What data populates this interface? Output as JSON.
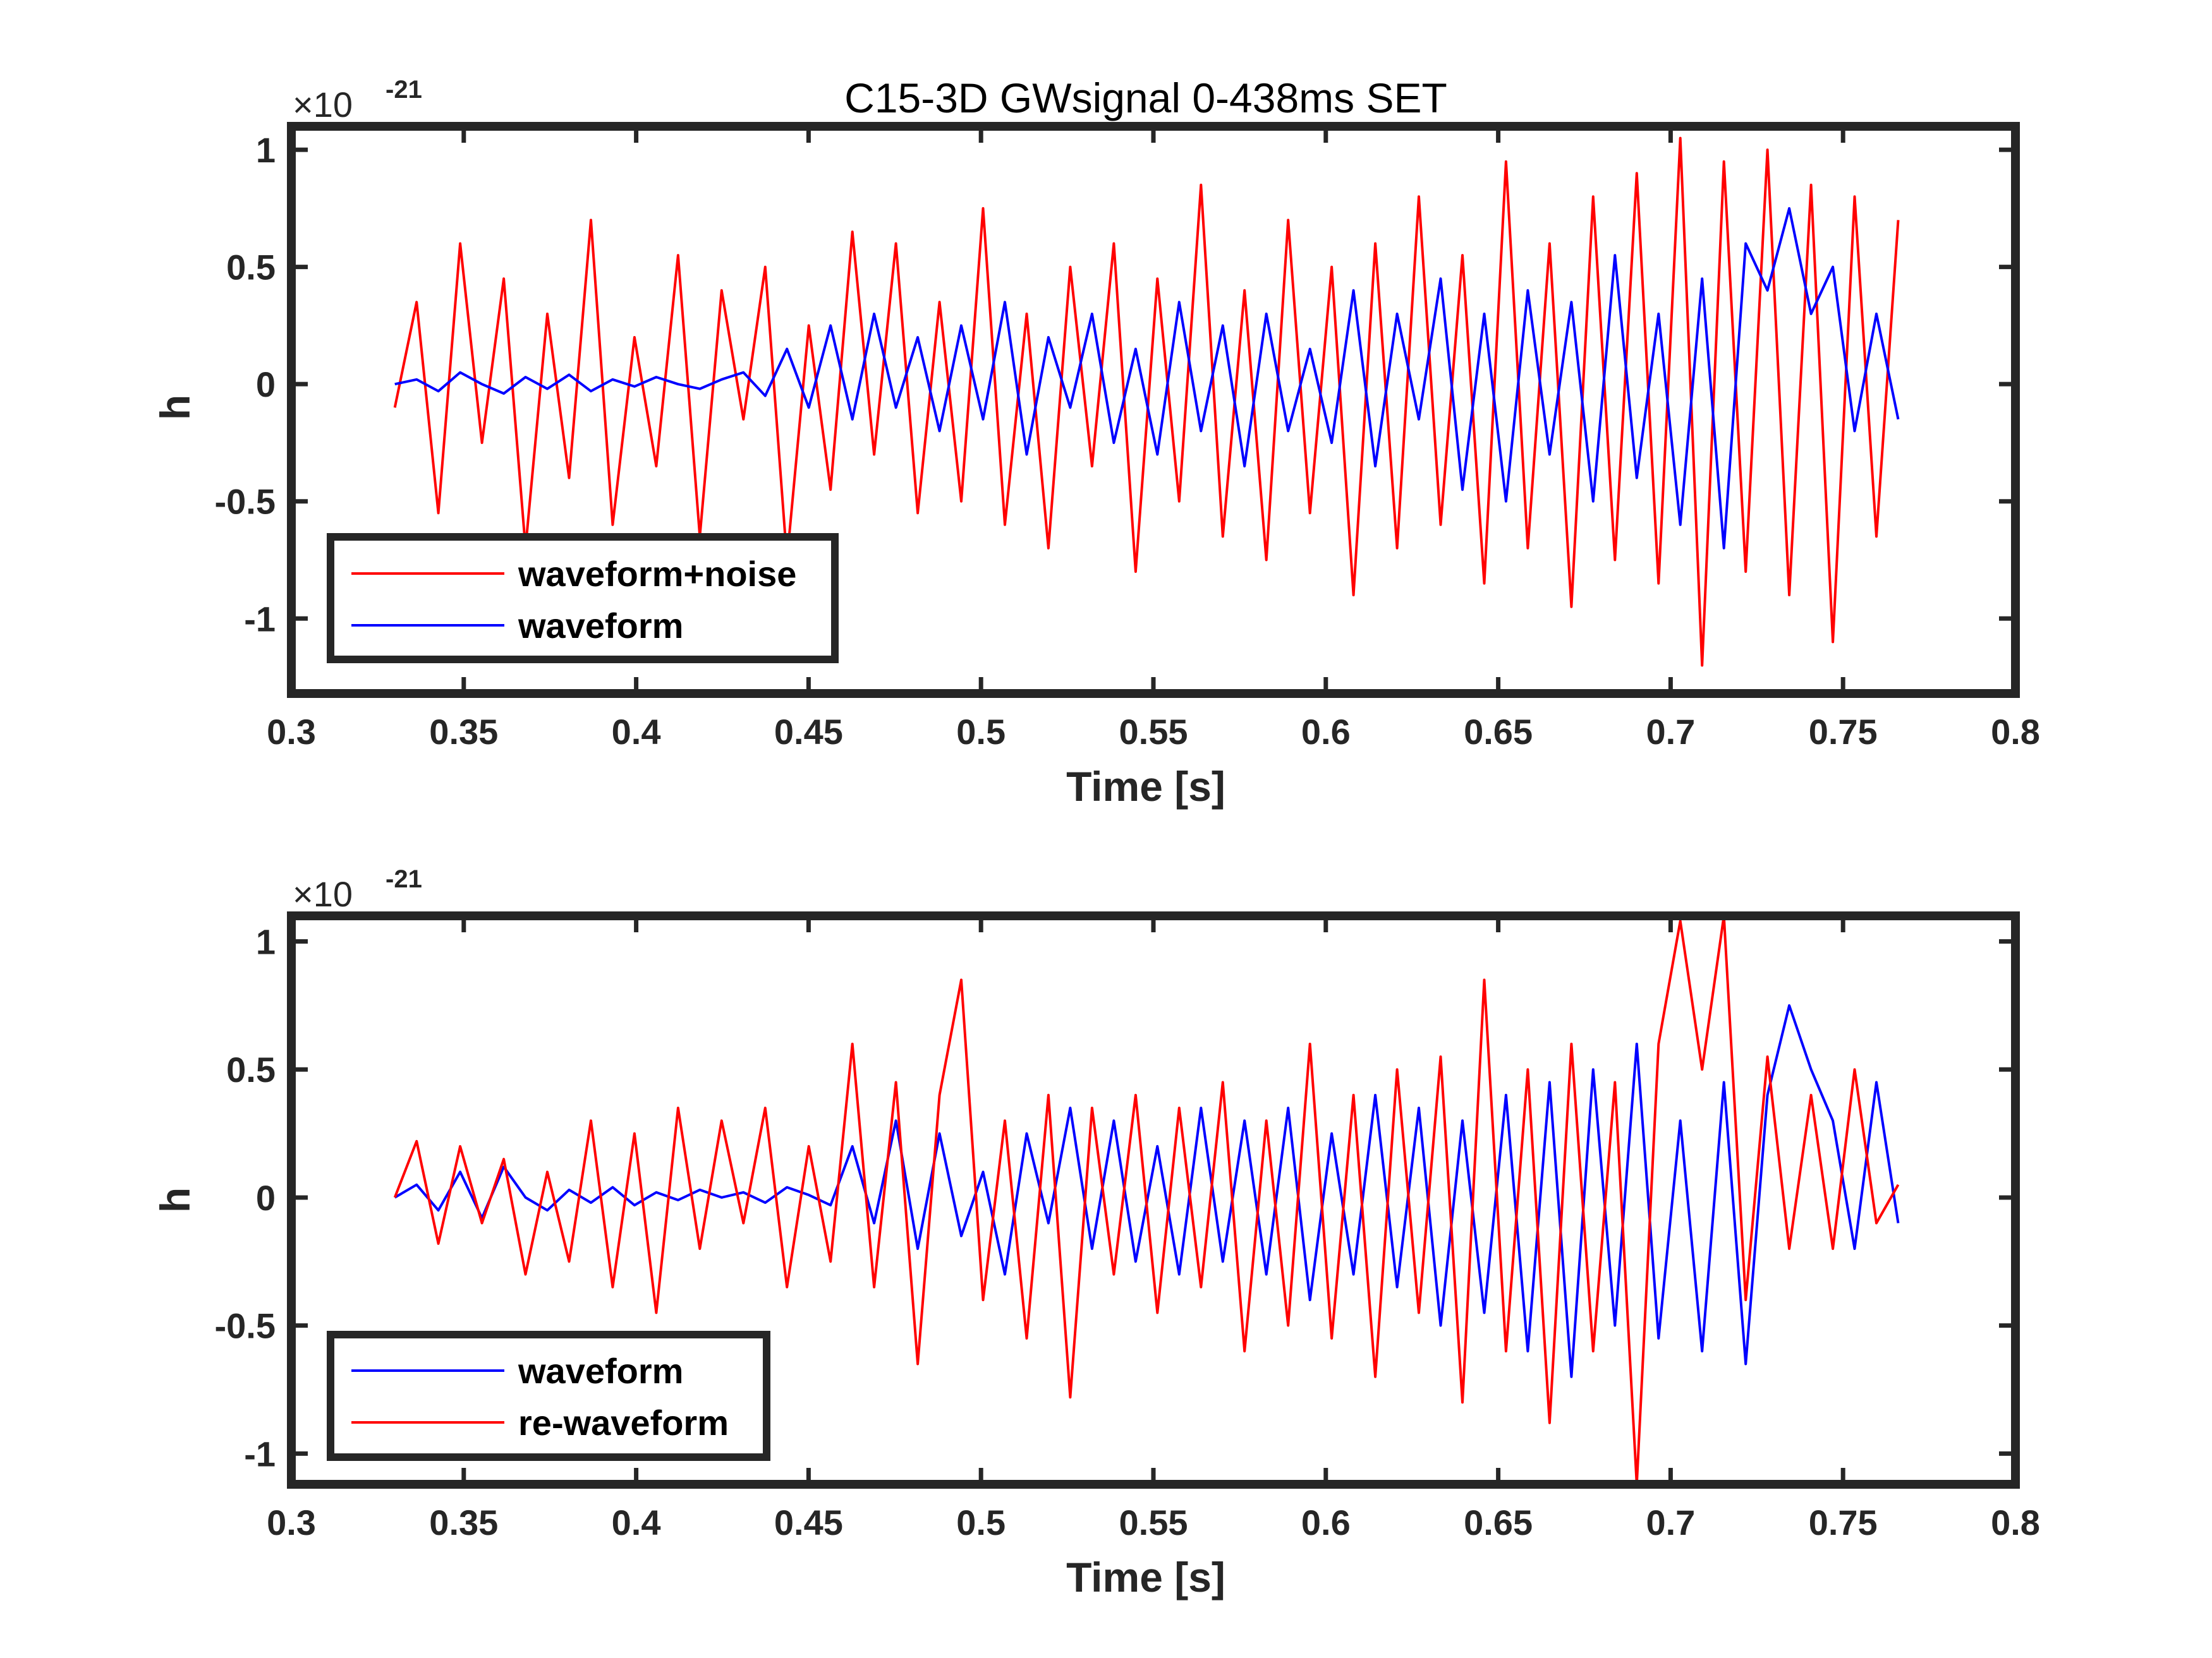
{
  "chart_data": [
    {
      "type": "line",
      "title": "C15-3D GWsignal 0-438ms SET",
      "xlabel": "Time [s]",
      "ylabel": "h",
      "exponent": {
        "base": "×10",
        "power": "-21"
      },
      "xlim": [
        0.3,
        0.8
      ],
      "ylim": [
        -1.32,
        1.1
      ],
      "xticks": [
        "0.3",
        "0.35",
        "0.4",
        "0.45",
        "0.5",
        "0.55",
        "0.6",
        "0.65",
        "0.7",
        "0.75",
        "0.8"
      ],
      "xtick_values": [
        0.3,
        0.35,
        0.4,
        0.45,
        0.5,
        0.55,
        0.6,
        0.65,
        0.7,
        0.75,
        0.8
      ],
      "yticks": [
        "1",
        "0.5",
        "0",
        "-0.5",
        "-1"
      ],
      "ytick_values": [
        1,
        0.5,
        0,
        -0.5,
        -1
      ],
      "legend_position": "bottom-left",
      "series": [
        {
          "name": "waveform+noise",
          "color": "#ff0000",
          "x_range": [
            0.33,
            0.766
          ],
          "values": [
            -0.1,
            0.35,
            -0.55,
            0.6,
            -0.25,
            0.45,
            -0.7,
            0.3,
            -0.4,
            0.7,
            -0.6,
            0.2,
            -0.35,
            0.55,
            -0.65,
            0.4,
            -0.15,
            0.5,
            -0.75,
            0.25,
            -0.45,
            0.65,
            -0.3,
            0.6,
            -0.55,
            0.35,
            -0.5,
            0.75,
            -0.6,
            0.3,
            -0.7,
            0.5,
            -0.35,
            0.6,
            -0.8,
            0.45,
            -0.5,
            0.85,
            -0.65,
            0.4,
            -0.75,
            0.7,
            -0.55,
            0.5,
            -0.9,
            0.6,
            -0.7,
            0.8,
            -0.6,
            0.55,
            -0.85,
            0.95,
            -0.7,
            0.6,
            -0.95,
            0.8,
            -0.75,
            0.9,
            -0.85,
            1.05,
            -1.2,
            0.95,
            -0.8,
            1.0,
            -0.9,
            0.85,
            -1.1,
            0.8,
            -0.65,
            0.7
          ]
        },
        {
          "name": "waveform",
          "color": "#0000ff",
          "x_range": [
            0.33,
            0.766
          ],
          "values": [
            0.0,
            0.02,
            -0.03,
            0.05,
            0.0,
            -0.04,
            0.03,
            -0.02,
            0.04,
            -0.03,
            0.02,
            -0.01,
            0.03,
            0.0,
            -0.02,
            0.02,
            0.05,
            -0.05,
            0.15,
            -0.1,
            0.25,
            -0.15,
            0.3,
            -0.1,
            0.2,
            -0.2,
            0.25,
            -0.15,
            0.35,
            -0.3,
            0.2,
            -0.1,
            0.3,
            -0.25,
            0.15,
            -0.3,
            0.35,
            -0.2,
            0.25,
            -0.35,
            0.3,
            -0.2,
            0.15,
            -0.25,
            0.4,
            -0.35,
            0.3,
            -0.15,
            0.45,
            -0.45,
            0.3,
            -0.5,
            0.4,
            -0.3,
            0.35,
            -0.5,
            0.55,
            -0.4,
            0.3,
            -0.6,
            0.45,
            -0.7,
            0.6,
            0.4,
            0.75,
            0.3,
            0.5,
            -0.2,
            0.3,
            -0.15
          ]
        }
      ]
    },
    {
      "type": "line",
      "title": "",
      "xlabel": "Time [s]",
      "ylabel": "h",
      "exponent": {
        "base": "×10",
        "power": "-21"
      },
      "xlim": [
        0.3,
        0.8
      ],
      "ylim": [
        -1.12,
        1.1
      ],
      "xticks": [
        "0.3",
        "0.35",
        "0.4",
        "0.45",
        "0.5",
        "0.55",
        "0.6",
        "0.65",
        "0.7",
        "0.75",
        "0.8"
      ],
      "xtick_values": [
        0.3,
        0.35,
        0.4,
        0.45,
        0.5,
        0.55,
        0.6,
        0.65,
        0.7,
        0.75,
        0.8
      ],
      "yticks": [
        "1",
        "0.5",
        "0",
        "-0.5",
        "-1"
      ],
      "ytick_values": [
        1,
        0.5,
        0,
        -0.5,
        -1
      ],
      "legend_position": "bottom-left",
      "series": [
        {
          "name": "waveform",
          "color": "#0000ff",
          "x_range": [
            0.33,
            0.766
          ],
          "values": [
            0.0,
            0.05,
            -0.05,
            0.1,
            -0.08,
            0.12,
            0.0,
            -0.05,
            0.03,
            -0.02,
            0.04,
            -0.03,
            0.02,
            -0.01,
            0.03,
            0.0,
            0.02,
            -0.02,
            0.04,
            0.01,
            -0.03,
            0.2,
            -0.1,
            0.3,
            -0.2,
            0.25,
            -0.15,
            0.1,
            -0.3,
            0.25,
            -0.1,
            0.35,
            -0.2,
            0.3,
            -0.25,
            0.2,
            -0.3,
            0.35,
            -0.25,
            0.3,
            -0.3,
            0.35,
            -0.4,
            0.25,
            -0.3,
            0.4,
            -0.35,
            0.35,
            -0.5,
            0.3,
            -0.45,
            0.4,
            -0.6,
            0.45,
            -0.7,
            0.5,
            -0.5,
            0.6,
            -0.55,
            0.3,
            -0.6,
            0.45,
            -0.65,
            0.4,
            0.75,
            0.5,
            0.3,
            -0.2,
            0.45,
            -0.1
          ]
        },
        {
          "name": "re-waveform",
          "color": "#ff0000",
          "x_range": [
            0.33,
            0.766
          ],
          "values": [
            0.0,
            0.22,
            -0.18,
            0.2,
            -0.1,
            0.15,
            -0.3,
            0.1,
            -0.25,
            0.3,
            -0.35,
            0.25,
            -0.45,
            0.35,
            -0.2,
            0.3,
            -0.1,
            0.35,
            -0.35,
            0.2,
            -0.25,
            0.6,
            -0.35,
            0.45,
            -0.65,
            0.4,
            0.85,
            -0.4,
            0.3,
            -0.55,
            0.4,
            -0.78,
            0.35,
            -0.3,
            0.4,
            -0.45,
            0.35,
            -0.35,
            0.45,
            -0.6,
            0.3,
            -0.5,
            0.6,
            -0.55,
            0.4,
            -0.7,
            0.5,
            -0.45,
            0.55,
            -0.8,
            0.85,
            -0.6,
            0.5,
            -0.88,
            0.6,
            -0.6,
            0.45,
            -1.12,
            0.6,
            1.08,
            0.5,
            1.1,
            -0.4,
            0.55,
            -0.2,
            0.4,
            -0.2,
            0.5,
            -0.1,
            0.05
          ]
        }
      ]
    }
  ]
}
